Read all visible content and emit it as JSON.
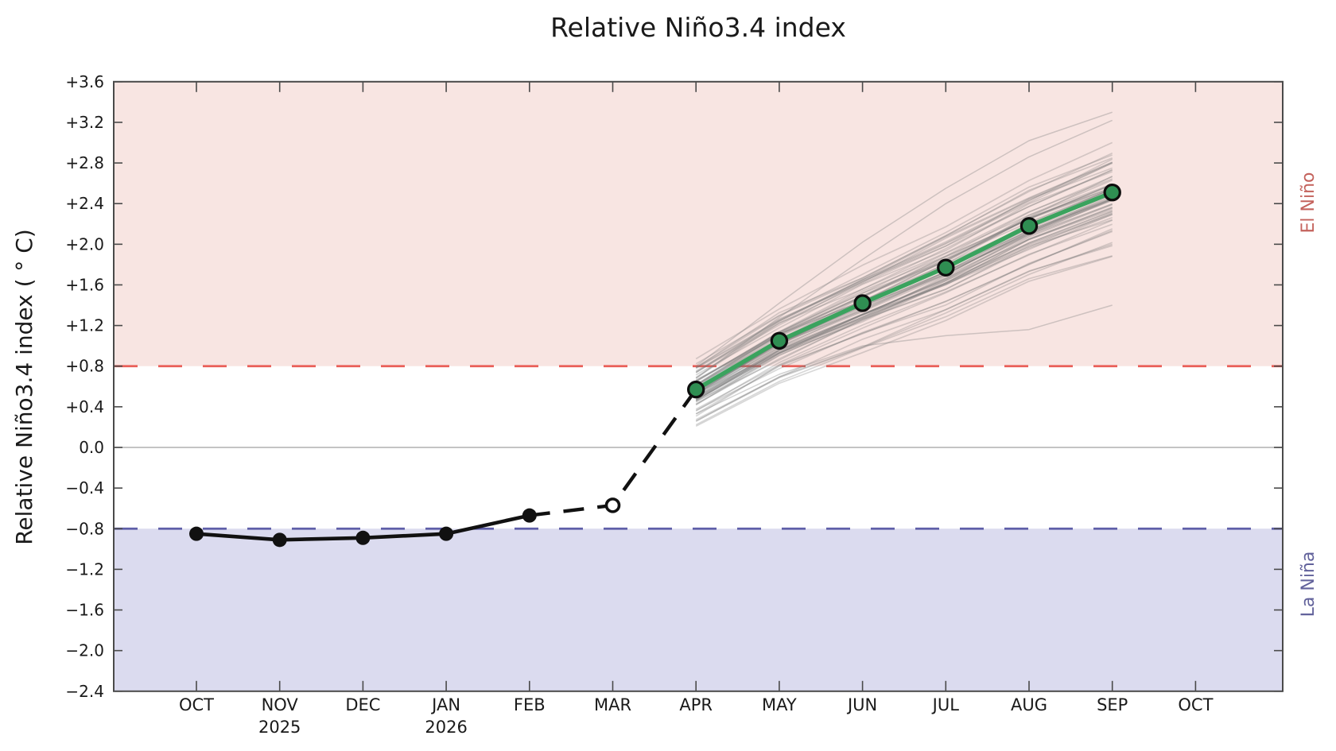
{
  "bands": {
    "el_nino": {
      "label": "El Niño",
      "threshold": 0.8,
      "fill": "#f8e5e2",
      "line_color": "#e95f58",
      "label_color": "#c4625c"
    },
    "la_nina": {
      "label": "La Niña",
      "threshold": -0.8,
      "fill": "#dbdbef",
      "line_color": "#5e5ea8",
      "label_color": "#62629b"
    }
  },
  "y_axis": {
    "tick_labels": [
      "+3.6",
      "+3.2",
      "+2.8",
      "+2.4",
      "+2.0",
      "+1.6",
      "+1.2",
      "+0.8",
      "+0.4",
      "0.0",
      "−0.4",
      "−0.8",
      "−1.6",
      "−2.0"
    ],
    "all_tick_labels": [
      "+3.6",
      "+3.2",
      "+2.8",
      "+2.4",
      "+2.0",
      "+1.6",
      "+1.2",
      "+0.8",
      "+0.4",
      "0.0",
      "−0.4",
      "−0.8",
      "−1.2",
      "−1.6",
      "−2.0",
      "−2.4"
    ]
  },
  "chart_data": {
    "type": "line",
    "title": "Relative Niño3.4 index",
    "ylabel": "Relative Niño3.4 index ( ° C)",
    "ylim": [
      -2.4,
      3.6
    ],
    "ytick_step": 0.4,
    "zero_line": 0.0,
    "x_categories": [
      "OCT",
      "NOV",
      "DEC",
      "JAN",
      "FEB",
      "MAR",
      "APR",
      "MAY",
      "JUN",
      "JUL",
      "AUG",
      "SEP",
      "OCT"
    ],
    "x_year_labels": [
      {
        "month_index": 1,
        "text": "2025"
      },
      {
        "month_index": 3,
        "text": "2026"
      }
    ],
    "thresholds": {
      "el_nino": 0.8,
      "la_nina": -0.8
    },
    "series": [
      {
        "name": "observed",
        "line": "solid",
        "color": "#111111",
        "marker": "filled-circle",
        "months": [
          "OCT",
          "NOV",
          "DEC",
          "JAN",
          "FEB"
        ],
        "values": [
          -0.85,
          -0.91,
          -0.89,
          -0.85,
          -0.67
        ]
      },
      {
        "name": "observed-preliminary-bridge",
        "line": "dashed",
        "color": "#111111",
        "marker": "open-circle",
        "open_marker_month": "MAR",
        "open_marker_value": -0.57,
        "months": [
          "FEB",
          "MAR",
          "APR"
        ],
        "values": [
          -0.67,
          -0.57,
          0.57
        ]
      },
      {
        "name": "forecast-mean",
        "line": "solid",
        "color": "#3aa35e",
        "marker_fill": "#2f8e52",
        "marker_edge": "#0d0d0d",
        "months": [
          "APR",
          "MAY",
          "JUN",
          "JUL",
          "AUG",
          "SEP"
        ],
        "values": [
          0.57,
          1.05,
          1.42,
          1.77,
          2.18,
          2.51
        ]
      }
    ],
    "ensemble": {
      "name": "ensemble-members",
      "color": "rgba(115,115,115,0.28)",
      "count": 63,
      "seed": 11,
      "months": [
        "APR",
        "MAY",
        "JUN",
        "JUL",
        "AUG",
        "SEP"
      ],
      "mean": [
        0.57,
        1.05,
        1.42,
        1.77,
        2.18,
        2.51
      ],
      "spread_by_month": [
        0.36,
        0.42,
        0.47,
        0.52,
        0.56,
        0.6
      ],
      "jitter": 0.07,
      "outliers": [
        [
          0.33,
          0.72,
          1.0,
          1.1,
          1.16,
          1.4
        ],
        [
          0.8,
          1.42,
          2.02,
          2.55,
          3.02,
          3.3
        ],
        [
          0.68,
          1.28,
          1.85,
          2.4,
          2.86,
          3.22
        ]
      ]
    }
  }
}
